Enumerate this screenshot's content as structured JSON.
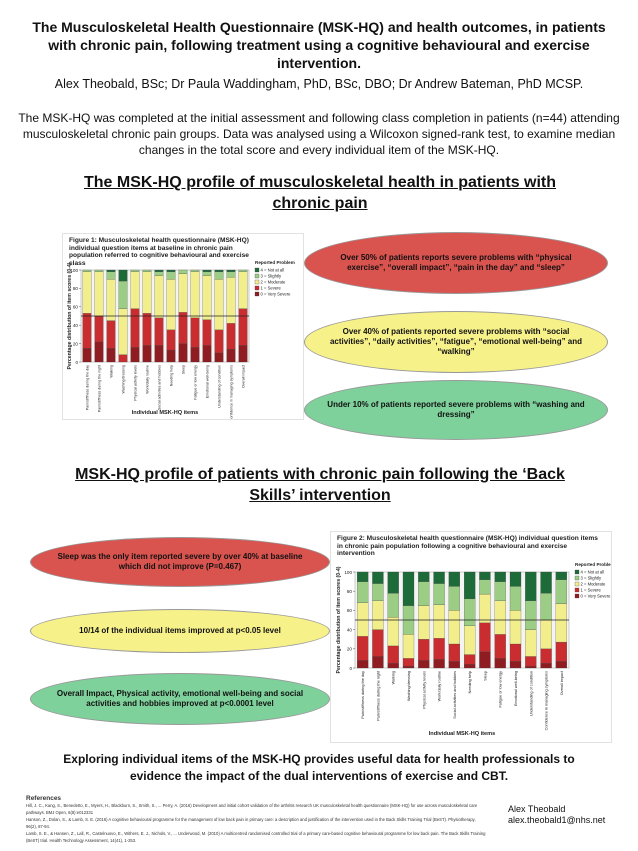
{
  "header": {
    "title": "The Musculoskeletal Health Questionnaire (MSK-HQ) and health outcomes, in patients with chronic pain, following treatment using a cognitive behavioural and exercise intervention.",
    "authors": "Alex Theobald, BSc; Dr Paula Waddingham, PhD, BSc, DBO; Dr Andrew Bateman, PhD MCSP.",
    "intro": "The MSK-HQ was completed at the initial assessment and following class completion in patients (n=44) attending musculoskeletal chronic pain groups. Data was analysed using a Wilcoxon signed-rank test, to examine median changes in the total score and every individual item of the MSK-HQ."
  },
  "section1": {
    "heading": "The MSK-HQ profile of musculoskeletal health in patients with chronic pain",
    "callouts": [
      "Over 50% of patients reports severe problems with “physical exercise”, “overall impact”, “pain in the day” and “sleep”",
      "Over 40% of patients reported severe problems with “social activities”, “daily activities”, “fatigue”, “emotional well-being” and “walking”",
      "Under 10% of patients reported severe problems with “washing and dressing”"
    ]
  },
  "section2": {
    "heading": "MSK-HQ profile of patients with chronic pain following the ‘Back Skills’ intervention",
    "callouts": [
      "Sleep was the only item reported severe by over 40% at baseline which did not improve (P=0.467)",
      "10/14 of the individual items improved at p<0.05 level",
      "Overall Impact, Physical activity, emotional well-being and social activities and hobbies improved at p<0.0001 level"
    ]
  },
  "conclusion": "Exploring individual items of the MSK-HQ provides useful data for health professionals to evidence the impact of the dual interventions of exercise and CBT.",
  "references": {
    "heading": "References",
    "lines": [
      "Hill, J. C., Kang, S., Benedetto, E., Myers, H., Blackburn, S., Smith, S., ... Perry, A. (2016) Development and initial cohort validation of the arthritis research UK musculoskeletal health questionnaire (MSK-HQ) for use across musculoskeletal care pathways. BMJ Open, 6(8):e012331",
      "Hanson, Z., Dolan, S., & Lamb, S. E. (2016) A cognitive behavioural programme for the management of low back pain in primary care: a description and justification of the intervention used in the Back Skills Training Trial (BeST). Physiotherapy, 96(2), 87-94.",
      "Lamb, S. E., & Hansen, Z., Lall, R., Castelnuovo, E., Withers, E. J., Nichols, V., ... Underwood, M. (2010) A multicentred randomised controlled trial of a primary care-based cognitive behavioural programme for low back pain. The Back Skills Training (BeST) trial. Health Technology Assessment, 14(41), 1-253."
    ]
  },
  "contact": {
    "name": "Alex Theobald",
    "email": "alex.theobald1@nhs.net"
  },
  "chart_data": [
    {
      "type": "bar",
      "stacked": true,
      "title": "Figure 1:  Musculoskeletal health questionnaire (MSK-HQ) individual question items at baseline in chronic pain population referred to cognitive behavioural and exercise class",
      "xlabel": "Individual MSK-HQ items",
      "ylabel": "Percentage distribution of item scores (0-4)",
      "ylim": [
        0,
        100
      ],
      "yticks": [
        0,
        20,
        40,
        60,
        80,
        100
      ],
      "reference_line": 50,
      "legend_title": "Reported Problem",
      "legend_position": "right",
      "categories": [
        "Pain/stiffness during the day",
        "Pain/stiffness during the night",
        "Walking",
        "Washing/dressing",
        "Physical activity levels",
        "Work/daily routine",
        "Social activities and hobbies",
        "Needing help",
        "Sleep",
        "Fatigue or low energy",
        "Emotional well-being",
        "Understanding of condition",
        "Confidence in managing symptoms",
        "Overall impact"
      ],
      "colors": [
        "#1e6b3a",
        "#9ccd84",
        "#f2ee8b",
        "#c92d2f",
        "#8e1c21"
      ],
      "series": [
        {
          "name": "4 = Not at all",
          "values": [
            0,
            0,
            2,
            12,
            0,
            0,
            2,
            2,
            0,
            0,
            2,
            2,
            2,
            0
          ]
        },
        {
          "name": "3 = Slightly",
          "values": [
            2,
            2,
            8,
            30,
            2,
            2,
            4,
            8,
            4,
            2,
            4,
            8,
            6,
            2
          ]
        },
        {
          "name": "2 = Moderate",
          "values": [
            45,
            48,
            45,
            50,
            40,
            45,
            46,
            55,
            42,
            50,
            48,
            55,
            50,
            40
          ]
        },
        {
          "name": "1 = Severe",
          "values": [
            38,
            28,
            30,
            8,
            42,
            35,
            30,
            22,
            34,
            32,
            28,
            25,
            28,
            40
          ]
        },
        {
          "name": "0 = Very Severe",
          "values": [
            15,
            22,
            15,
            0,
            16,
            18,
            18,
            13,
            20,
            16,
            18,
            10,
            14,
            18
          ]
        }
      ]
    },
    {
      "type": "bar",
      "stacked": true,
      "title": "Figure 2:  Musculoskeletal health questionnaire (MSK-HQ) individual question items in chronic pain population following a cognitive behavioural and exercise intervention",
      "xlabel": "Individual MSK-HQ items",
      "ylabel": "Percentage distribution of item scores (0-4)",
      "ylim": [
        0,
        100
      ],
      "yticks": [
        0,
        20,
        40,
        60,
        80,
        100
      ],
      "reference_line": 50,
      "legend_title": "Reported Problem",
      "legend_position": "right",
      "categories": [
        "Pain/stiffness during the day",
        "Pain/stiffness during the night",
        "Walking",
        "Washing/dressing",
        "Physical activity levels",
        "Work/daily routine",
        "Social activities and hobbies",
        "Needing help",
        "Sleep",
        "Fatigue or low energy",
        "Emotional well-being",
        "Understanding of condition",
        "Confidence in managing symptoms",
        "Overall impact"
      ],
      "colors": [
        "#1e6b3a",
        "#9ccd84",
        "#f2ee8b",
        "#c92d2f",
        "#8e1c21"
      ],
      "series": [
        {
          "name": "4 = Not at all",
          "values": [
            10,
            12,
            22,
            35,
            10,
            12,
            15,
            28,
            8,
            10,
            15,
            30,
            22,
            8
          ]
        },
        {
          "name": "3 = Slightly",
          "values": [
            22,
            18,
            25,
            30,
            25,
            22,
            25,
            28,
            15,
            20,
            25,
            30,
            28,
            25
          ]
        },
        {
          "name": "2 = Moderate",
          "values": [
            35,
            30,
            30,
            25,
            35,
            35,
            35,
            30,
            30,
            35,
            35,
            28,
            30,
            40
          ]
        },
        {
          "name": "1 = Severe",
          "values": [
            25,
            28,
            18,
            8,
            22,
            22,
            18,
            10,
            30,
            25,
            18,
            10,
            15,
            20
          ]
        },
        {
          "name": "0 = Very Severe",
          "values": [
            8,
            12,
            5,
            2,
            8,
            9,
            7,
            4,
            17,
            10,
            7,
            2,
            5,
            7
          ]
        }
      ]
    }
  ]
}
